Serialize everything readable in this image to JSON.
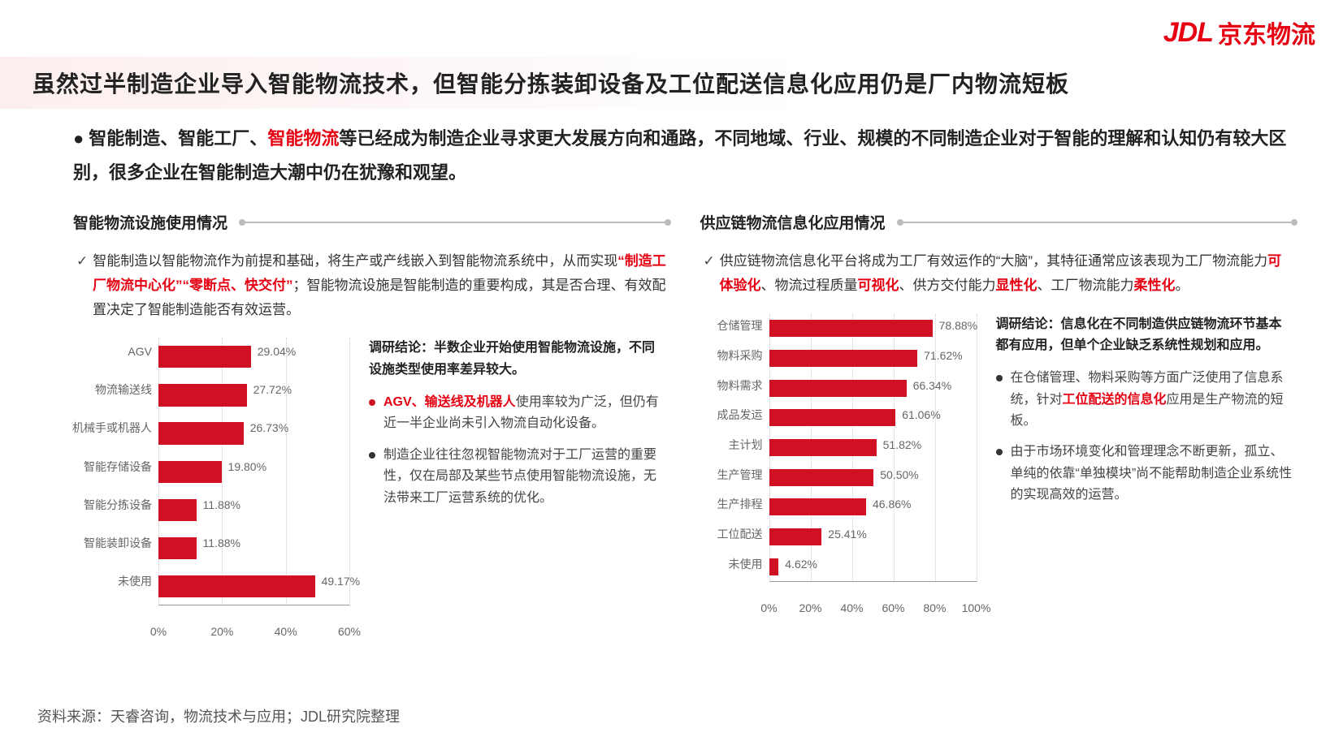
{
  "logo": {
    "jdl": "JDL",
    "cn": "京东物流"
  },
  "title": "虽然过半制造企业导入智能物流技术，但智能分拣装卸设备及工位配送信息化应用仍是厂内物流短板",
  "intro": {
    "pre": "智能制造、智能工厂、",
    "hl": "智能物流",
    "post": "等已经成为制造企业寻求更大发展方向和通路，不同地域、行业、规模的不同制造企业对于智能的理解和认知仍有较大区别，很多企业在智能制造大潮中仍在犹豫和观望。"
  },
  "left": {
    "heading": "智能物流设施使用情况",
    "desc": {
      "pre": "智能制造以智能物流作为前提和基础，将生产或产线嵌入到智能物流系统中，从而实现",
      "hl1": "“制造工厂物流中心化”",
      "hl2": "“零断点、快交付”",
      "post": "；智能物流设施是智能制造的重要构成，其是否合理、有效配置决定了智能制造能否有效运营。"
    },
    "chart": {
      "type": "bar-horizontal",
      "xmax": 60,
      "xtick_step": 20,
      "xticks": [
        "0%",
        "20%",
        "40%",
        "60%"
      ],
      "bar_color": "#d01124",
      "label_color": "#666666",
      "grid_color": "#cccccc",
      "bars": [
        {
          "label": "AGV",
          "value": 29.04,
          "display": "29.04%"
        },
        {
          "label": "物流输送线",
          "value": 27.72,
          "display": "27.72%"
        },
        {
          "label": "机械手或机器人",
          "value": 26.73,
          "display": "26.73%"
        },
        {
          "label": "智能存储设备",
          "value": 19.8,
          "display": "19.80%"
        },
        {
          "label": "智能分拣设备",
          "value": 11.88,
          "display": "11.88%"
        },
        {
          "label": "智能装卸设备",
          "value": 11.88,
          "display": "11.88%"
        },
        {
          "label": "未使用",
          "value": 49.17,
          "display": "49.17%"
        }
      ]
    },
    "conclusion": {
      "head": "调研结论：半数企业开始使用智能物流设施，不同设施类型使用率差异较大。",
      "items": [
        {
          "hl": "AGV、输送线及机器人",
          "text": "使用率较为广泛，但仍有近一半企业尚未引入物流自动化设备。",
          "red": true
        },
        {
          "hl": "",
          "text": "制造企业往往忽视智能物流对于工厂运营的重要性，仅在局部及某些节点使用智能物流设施，无法带来工厂运营系统的优化。",
          "red": false
        }
      ]
    }
  },
  "right": {
    "heading": "供应链物流信息化应用情况",
    "desc": {
      "pre": "供应链物流信息化平台将成为工厂有效运作的“大脑”，其特征通常应该表现为工厂物流能力",
      "hl1": "可体验化",
      "mid1": "、物流过程质量",
      "hl2": "可视化",
      "mid2": "、供方交付能力",
      "hl3": "显性化",
      "mid3": "、工厂物流能力",
      "hl4": "柔性化",
      "post": "。"
    },
    "chart": {
      "type": "bar-horizontal",
      "xmax": 100,
      "xtick_step": 20,
      "xticks": [
        "0%",
        "20%",
        "40%",
        "60%",
        "80%",
        "100%"
      ],
      "bar_color": "#d01124",
      "label_color": "#666666",
      "grid_color": "#cccccc",
      "bars": [
        {
          "label": "仓储管理",
          "value": 78.88,
          "display": "78.88%"
        },
        {
          "label": "物料采购",
          "value": 71.62,
          "display": "71.62%"
        },
        {
          "label": "物料需求",
          "value": 66.34,
          "display": "66.34%"
        },
        {
          "label": "成品发运",
          "value": 61.06,
          "display": "61.06%"
        },
        {
          "label": "主计划",
          "value": 51.82,
          "display": "51.82%"
        },
        {
          "label": "生产管理",
          "value": 50.5,
          "display": "50.50%"
        },
        {
          "label": "生产排程",
          "value": 46.86,
          "display": "46.86%"
        },
        {
          "label": "工位配送",
          "value": 25.41,
          "display": "25.41%"
        },
        {
          "label": "未使用",
          "value": 4.62,
          "display": "4.62%"
        }
      ]
    },
    "conclusion": {
      "head": "调研结论：信息化在不同制造供应链物流环节基本都有应用，但单个企业缺乏系统性规划和应用。",
      "items": [
        {
          "pre": "在仓储管理、物料采购等方面广泛使用了信息系统，针对",
          "hl": "工位配送的信息化",
          "text": "应用是生产物流的短板。"
        },
        {
          "pre": "",
          "hl": "",
          "text": "由于市场环境变化和管理理念不断更新，孤立、单纯的依靠“单独模块”尚不能帮助制造企业系统性的实现高效的运营。"
        }
      ]
    }
  },
  "source": "资料来源：天睿咨询，物流技术与应用；JDL研究院整理"
}
